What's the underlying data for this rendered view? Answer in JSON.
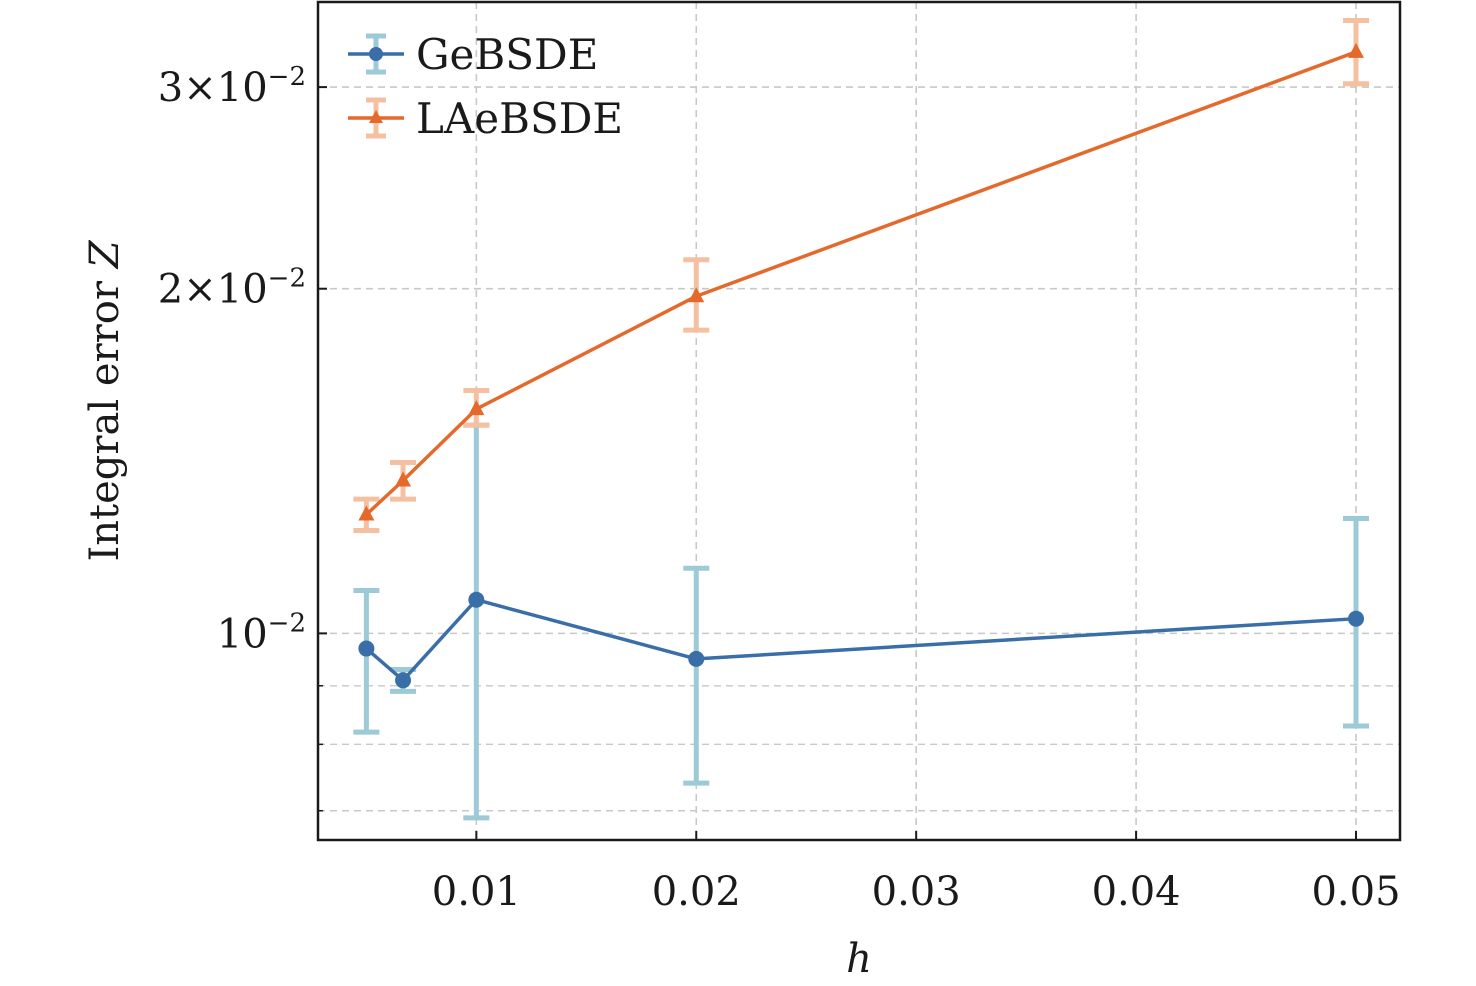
{
  "chart_data": {
    "type": "line",
    "xlabel": "h",
    "ylabel": "Integral error Z",
    "ylabel_prefix": "Integral error ",
    "ylabel_var": "Z",
    "y_scale": "log",
    "xlim": [
      0.0028,
      0.052
    ],
    "ylim": [
      0.0066,
      0.0356
    ],
    "x_ticks": [
      {
        "value": 0.01,
        "label": "0.01"
      },
      {
        "value": 0.02,
        "label": "0.02"
      },
      {
        "value": 0.03,
        "label": "0.03"
      },
      {
        "value": 0.04,
        "label": "0.04"
      },
      {
        "value": 0.05,
        "label": "0.05"
      }
    ],
    "y_major_ticks": [
      {
        "value": 0.01,
        "mant": "",
        "exp": "−2"
      },
      {
        "value": 0.02,
        "mant": "2",
        "exp": "−2"
      },
      {
        "value": 0.03,
        "mant": "3",
        "exp": "−2"
      }
    ],
    "y_minor_ticks": [
      0.007,
      0.008,
      0.009
    ],
    "grid": true,
    "legend_position": "top-left",
    "series": [
      {
        "name": "GeBSDE",
        "color": "#3a6ea8",
        "errorbar_color": "#9ccad6",
        "marker": "circle",
        "x": [
          0.005,
          0.006667,
          0.01,
          0.02,
          0.05
        ],
        "y": [
          0.0097,
          0.0091,
          0.0107,
          0.0095,
          0.0103
        ],
        "yerr_low": [
          0.0082,
          0.0089,
          0.0069,
          0.0074,
          0.0083
        ],
        "yerr_high": [
          0.0109,
          0.0093,
          0.0152,
          0.0114,
          0.0126
        ]
      },
      {
        "name": "LAeBSDE",
        "color": "#e4692b",
        "errorbar_color": "#f5c0a0",
        "marker": "triangle",
        "x": [
          0.005,
          0.006667,
          0.01,
          0.02,
          0.05
        ],
        "y": [
          0.0127,
          0.0136,
          0.0157,
          0.0197,
          0.0322
        ],
        "yerr_low": [
          0.0123,
          0.0131,
          0.0152,
          0.0184,
          0.0302
        ],
        "yerr_high": [
          0.0131,
          0.0141,
          0.0163,
          0.0212,
          0.0343
        ]
      }
    ]
  }
}
